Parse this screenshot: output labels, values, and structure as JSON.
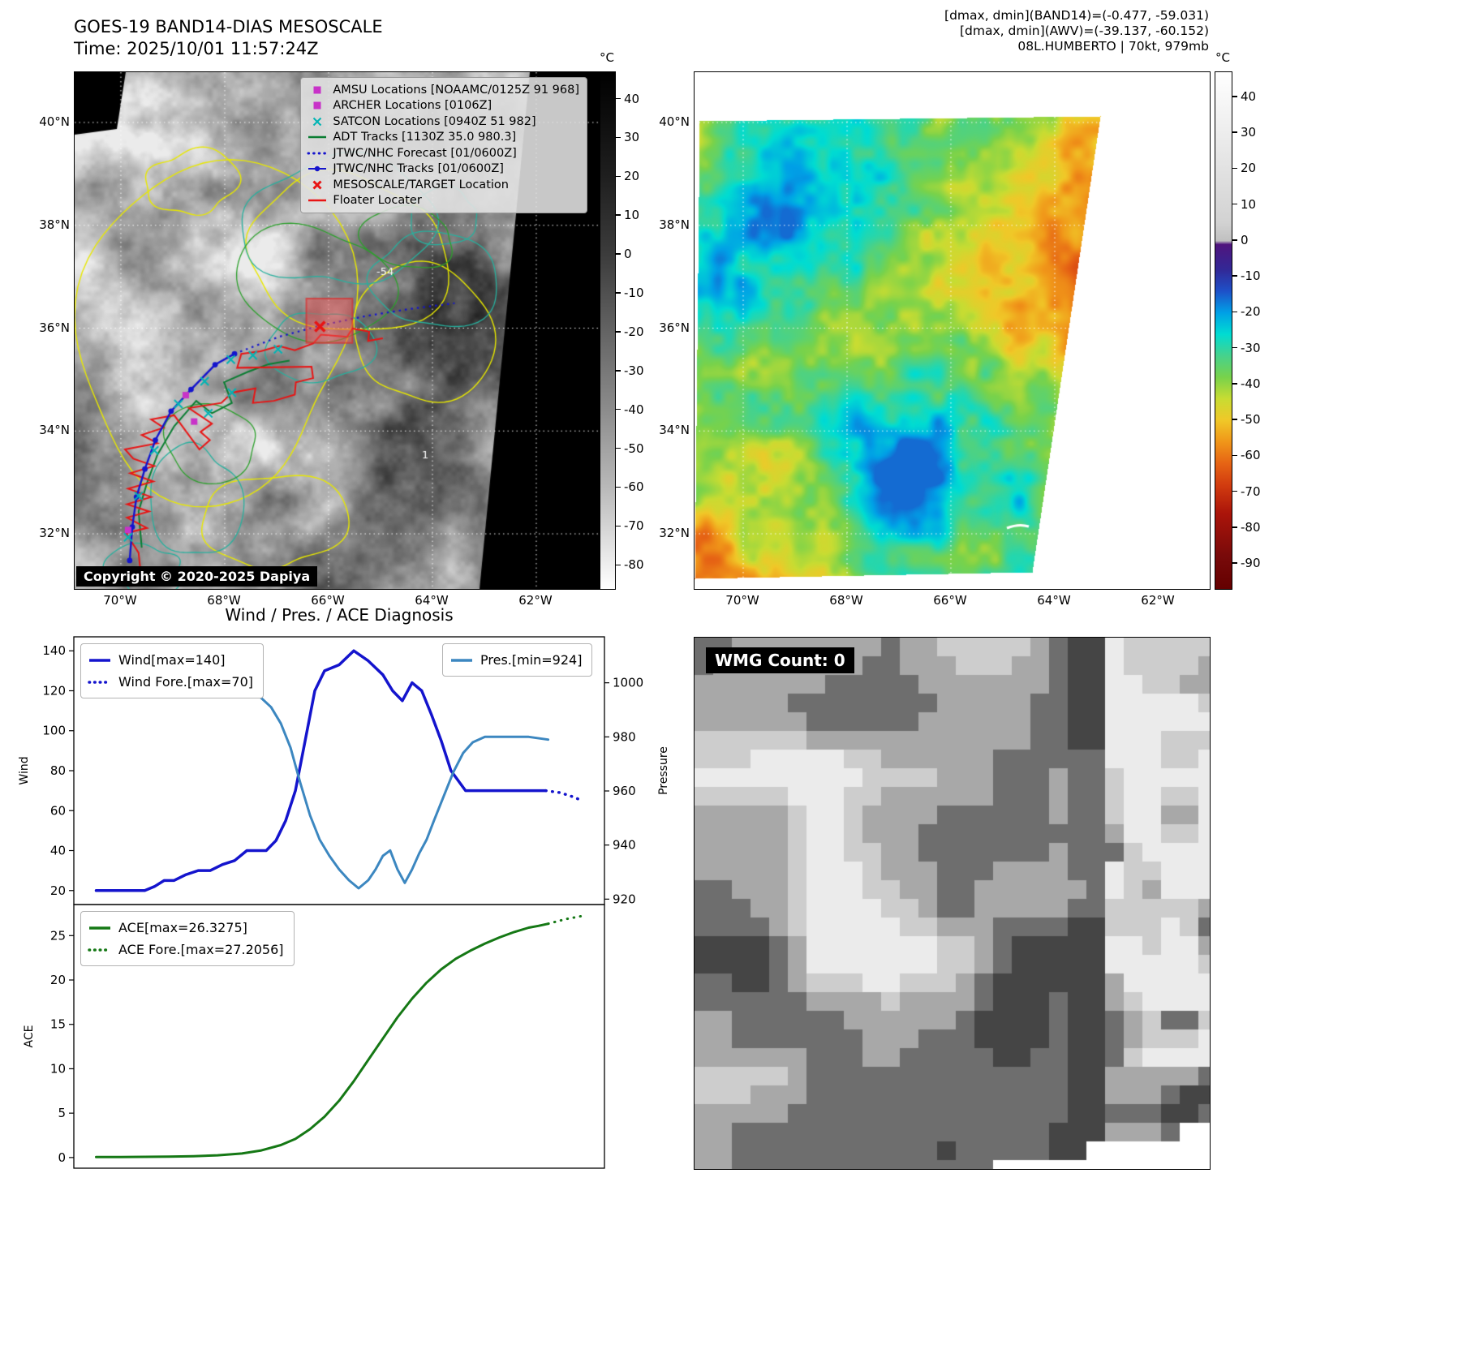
{
  "panel1": {
    "title": "GOES-19 BAND14-DIAS MESOSCALE",
    "time": "Time: 2025/10/01 11:57:24Z",
    "copyright": "Copyright © 2020-2025 Dapiya",
    "contour_labels": [
      "-54",
      "1"
    ],
    "lat_labels": [
      "40°N",
      "38°N",
      "36°N",
      "34°N",
      "32°N"
    ],
    "lon_labels": [
      "70°W",
      "68°W",
      "66°W",
      "64°W",
      "62°W"
    ],
    "colorbar": {
      "unit": "°C",
      "ticks": [
        40,
        30,
        20,
        10,
        0,
        -10,
        -20,
        -30,
        -40,
        -50,
        -60,
        -70,
        -80
      ],
      "vmax": 47,
      "vmin": -86,
      "stops": [
        [
          47,
          "#000000"
        ],
        [
          20,
          "#1f1f1f"
        ],
        [
          0,
          "#3c3c3c"
        ],
        [
          -20,
          "#646464"
        ],
        [
          -40,
          "#8c8c8c"
        ],
        [
          -60,
          "#b9b9b9"
        ],
        [
          -86,
          "#ffffff"
        ]
      ]
    },
    "legend": [
      {
        "label": "AMSU Locations [NOAAMC/0125Z 91 968]",
        "marker": "square",
        "color": "#c832c8"
      },
      {
        "label": "ARCHER Locations [0106Z]",
        "marker": "square",
        "color": "#c832c8"
      },
      {
        "label": "SATCON Locations [0940Z 51 982]",
        "marker": "x",
        "color": "#00b4b4"
      },
      {
        "label": "ADT Tracks [1130Z 35.0 980.3]",
        "marker": "line",
        "color": "#0a7d32"
      },
      {
        "label": "JTWC/NHC Forecast [01/0600Z]",
        "marker": "dotted",
        "color": "#1414cd"
      },
      {
        "label": "JTWC/NHC Tracks [01/0600Z]",
        "marker": "linedot",
        "color": "#1414cd"
      },
      {
        "label": "MESOSCALE/TARGET Location",
        "marker": "boldx",
        "color": "#e81414"
      },
      {
        "label": "Floater Locater",
        "marker": "line",
        "color": "#e81414"
      }
    ],
    "overlays": {
      "blue_track": [
        [
          0.105,
          0.945
        ],
        [
          0.11,
          0.88
        ],
        [
          0.118,
          0.822
        ],
        [
          0.134,
          0.768
        ],
        [
          0.154,
          0.712
        ],
        [
          0.184,
          0.656
        ],
        [
          0.222,
          0.614
        ],
        [
          0.268,
          0.566
        ],
        [
          0.305,
          0.545
        ]
      ],
      "blue_forecast": [
        [
          0.305,
          0.545
        ],
        [
          0.39,
          0.512
        ],
        [
          0.47,
          0.49
        ],
        [
          0.555,
          0.472
        ],
        [
          0.64,
          0.458
        ],
        [
          0.725,
          0.447
        ]
      ],
      "green_track": [
        [
          0.128,
          0.92
        ],
        [
          0.122,
          0.85
        ],
        [
          0.138,
          0.795
        ],
        [
          0.158,
          0.74
        ],
        [
          0.19,
          0.685
        ],
        [
          0.232,
          0.636
        ],
        [
          0.262,
          0.66
        ],
        [
          0.3,
          0.64
        ],
        [
          0.285,
          0.6
        ],
        [
          0.33,
          0.58
        ],
        [
          0.37,
          0.565
        ],
        [
          0.41,
          0.558
        ]
      ],
      "red_track": [
        [
          0.128,
          0.99
        ],
        [
          0.122,
          0.93
        ],
        [
          0.098,
          0.892
        ],
        [
          0.138,
          0.882
        ],
        [
          0.1,
          0.862
        ],
        [
          0.142,
          0.85
        ],
        [
          0.1,
          0.836
        ],
        [
          0.146,
          0.822
        ],
        [
          0.102,
          0.806
        ],
        [
          0.15,
          0.792
        ],
        [
          0.106,
          0.776
        ],
        [
          0.152,
          0.762
        ],
        [
          0.112,
          0.748
        ],
        [
          0.096,
          0.73
        ],
        [
          0.158,
          0.718
        ],
        [
          0.128,
          0.702
        ],
        [
          0.17,
          0.688
        ],
        [
          0.146,
          0.672
        ],
        [
          0.19,
          0.664
        ],
        [
          0.238,
          0.73
        ],
        [
          0.258,
          0.712
        ],
        [
          0.24,
          0.696
        ],
        [
          0.262,
          0.68
        ],
        [
          0.218,
          0.65
        ],
        [
          0.28,
          0.64
        ],
        [
          0.3,
          0.62
        ],
        [
          0.345,
          0.612
        ],
        [
          0.34,
          0.64
        ],
        [
          0.38,
          0.636
        ],
        [
          0.42,
          0.624
        ],
        [
          0.422,
          0.6
        ],
        [
          0.455,
          0.592
        ],
        [
          0.452,
          0.57
        ],
        [
          0.31,
          0.572
        ],
        [
          0.318,
          0.545
        ],
        [
          0.355,
          0.54
        ],
        [
          0.39,
          0.53
        ],
        [
          0.42,
          0.538
        ],
        [
          0.455,
          0.525
        ],
        [
          0.47,
          0.508
        ],
        [
          0.52,
          0.512
        ],
        [
          0.53,
          0.496
        ],
        [
          0.562,
          0.502
        ],
        [
          0.56,
          0.52
        ],
        [
          0.588,
          0.515
        ]
      ],
      "mesoscale_rect": [
        0.442,
        0.438,
        0.088,
        0.086
      ],
      "target_x": [
        0.468,
        0.492
      ],
      "magenta_squares": [
        [
          0.212,
          0.625
        ],
        [
          0.228,
          0.676
        ],
        [
          0.102,
          0.886
        ]
      ],
      "satcon_x": [
        [
          0.102,
          0.9
        ],
        [
          0.122,
          0.82
        ],
        [
          0.152,
          0.732
        ],
        [
          0.198,
          0.642
        ],
        [
          0.248,
          0.598
        ],
        [
          0.298,
          0.556
        ],
        [
          0.34,
          0.548
        ],
        [
          0.388,
          0.536
        ],
        [
          0.3,
          0.62
        ],
        [
          0.255,
          0.66
        ]
      ]
    }
  },
  "panel2": {
    "header_lines": [
      "[dmax, dmin](BAND14)=(-0.477, -59.031)",
      "[dmax, dmin](AWV)=(-39.137, -60.152)",
      "08L.HUMBERTO | 70kt, 979mb"
    ],
    "lat_labels": [
      "40°N",
      "38°N",
      "36°N",
      "34°N",
      "32°N"
    ],
    "lon_labels": [
      "70°W",
      "68°W",
      "66°W",
      "64°W",
      "62°W"
    ],
    "colorbar": {
      "unit": "°C",
      "ticks": [
        40,
        30,
        20,
        10,
        0,
        -10,
        -20,
        -30,
        -40,
        -50,
        -60,
        -70,
        -80,
        -90
      ],
      "vmax": 47,
      "vmin": -97,
      "stops": [
        [
          47,
          "#ffffff"
        ],
        [
          5,
          "#d2d2d2"
        ],
        [
          0,
          "#c0c0c0"
        ],
        [
          -1,
          "#50147d"
        ],
        [
          -8,
          "#322896"
        ],
        [
          -14,
          "#1e50c8"
        ],
        [
          -20,
          "#00a0e6"
        ],
        [
          -26,
          "#00dcd2"
        ],
        [
          -32,
          "#46d28c"
        ],
        [
          -38,
          "#78d24b"
        ],
        [
          -44,
          "#c8dc32"
        ],
        [
          -50,
          "#f0c828"
        ],
        [
          -56,
          "#f09619"
        ],
        [
          -62,
          "#e66414"
        ],
        [
          -68,
          "#d23c0f"
        ],
        [
          -76,
          "#aa140a"
        ],
        [
          -88,
          "#780a0a"
        ],
        [
          -97,
          "#640000"
        ]
      ]
    }
  },
  "panel3": {
    "title": "Wind / Pres. / ACE Diagnosis",
    "wind_label": "Wind",
    "pressure_label": "Pressure",
    "ace_label": "ACE",
    "legends": {
      "wind": [
        {
          "label": "Wind[max=140]",
          "style": "solid",
          "color": "#1414cd"
        },
        {
          "label": "Wind Fore.[max=70]",
          "style": "dotted",
          "color": "#1414cd"
        }
      ],
      "pres": [
        {
          "label": "Pres.[min=924]",
          "style": "solid",
          "color": "#3c87c0"
        }
      ],
      "ace": [
        {
          "label": "ACE[max=26.3275]",
          "style": "solid",
          "color": "#157815"
        },
        {
          "label": "ACE Fore.[max=27.2056]",
          "style": "dotted",
          "color": "#157815"
        }
      ]
    }
  },
  "panel4": {
    "wmg_label": "WMG Count: 0"
  },
  "chart_data": [
    {
      "type": "line",
      "title": "Wind / Pres. / ACE Diagnosis",
      "ylabel_left": "Wind",
      "ylabel_right": "Pressure",
      "y_ticks_left": [
        20,
        40,
        60,
        80,
        100,
        120,
        140
      ],
      "y_ticks_right": [
        920,
        940,
        960,
        980,
        1000
      ],
      "ylim_left": [
        13,
        147
      ],
      "ylim_right": [
        918,
        1017
      ],
      "legend_position": "upper left / upper right",
      "grid": false,
      "series": [
        {
          "name": "Wind[max=140]",
          "axis": "left",
          "style": "solid",
          "color": "#1414cd",
          "width": 3.5,
          "x": [
            0.0,
            0.035,
            0.07,
            0.1,
            0.12,
            0.14,
            0.16,
            0.185,
            0.21,
            0.235,
            0.26,
            0.285,
            0.31,
            0.33,
            0.35,
            0.37,
            0.39,
            0.41,
            0.43,
            0.45,
            0.47,
            0.5,
            0.53,
            0.56,
            0.59,
            0.61,
            0.63,
            0.65,
            0.67,
            0.69,
            0.71,
            0.73,
            0.76,
            0.8,
            0.85,
            0.9,
            0.925
          ],
          "y": [
            20,
            20,
            20,
            20,
            22,
            25,
            25,
            28,
            30,
            30,
            33,
            35,
            40,
            40,
            40,
            45,
            55,
            70,
            95,
            120,
            130,
            133,
            140,
            135,
            128,
            120,
            115,
            124,
            120,
            108,
            95,
            80,
            70,
            70,
            70,
            70,
            70
          ]
        },
        {
          "name": "Wind Fore.[max=70]",
          "axis": "left",
          "style": "dotted",
          "color": "#1414cd",
          "width": 3.5,
          "x": [
            0.925,
            0.955,
            0.98,
            1.0
          ],
          "y": [
            70,
            69,
            67,
            65
          ]
        },
        {
          "name": "Pres.[min=924]",
          "axis": "right",
          "style": "solid",
          "color": "#3c87c0",
          "width": 3,
          "x": [
            0.02,
            0.06,
            0.1,
            0.14,
            0.18,
            0.22,
            0.26,
            0.3,
            0.33,
            0.36,
            0.38,
            0.4,
            0.42,
            0.44,
            0.46,
            0.48,
            0.5,
            0.52,
            0.54,
            0.56,
            0.575,
            0.59,
            0.605,
            0.62,
            0.635,
            0.65,
            0.665,
            0.68,
            0.695,
            0.715,
            0.735,
            0.755,
            0.775,
            0.8,
            0.84,
            0.89,
            0.93
          ],
          "y": [
            1008,
            1007,
            1006,
            1005,
            1004,
            1002,
            1001,
            999,
            996,
            991,
            985,
            976,
            963,
            951,
            942,
            936,
            931,
            927,
            924,
            927,
            931,
            936,
            938,
            931,
            926,
            931,
            937,
            942,
            949,
            958,
            967,
            974,
            978,
            980,
            980,
            980,
            979
          ]
        }
      ]
    },
    {
      "type": "line",
      "ylabel_left": "ACE",
      "y_ticks_left": [
        0,
        5,
        10,
        15,
        20,
        25
      ],
      "ylim_left": [
        -1.2,
        28.5
      ],
      "grid": false,
      "series": [
        {
          "name": "ACE[max=26.3275]",
          "axis": "left",
          "style": "solid",
          "color": "#157815",
          "width": 3,
          "x": [
            0.0,
            0.05,
            0.1,
            0.15,
            0.2,
            0.25,
            0.3,
            0.34,
            0.38,
            0.41,
            0.44,
            0.47,
            0.5,
            0.53,
            0.56,
            0.59,
            0.62,
            0.65,
            0.68,
            0.71,
            0.74,
            0.77,
            0.8,
            0.83,
            0.86,
            0.89,
            0.91,
            0.93
          ],
          "y": [
            0.05,
            0.06,
            0.08,
            0.1,
            0.15,
            0.25,
            0.45,
            0.8,
            1.4,
            2.1,
            3.2,
            4.6,
            6.4,
            8.6,
            11.0,
            13.4,
            15.8,
            17.9,
            19.7,
            21.2,
            22.4,
            23.3,
            24.1,
            24.8,
            25.4,
            25.9,
            26.1,
            26.33
          ]
        },
        {
          "name": "ACE Fore.[max=27.2056]",
          "axis": "left",
          "style": "dotted",
          "color": "#157815",
          "width": 3,
          "x": [
            0.93,
            0.965,
            1.0
          ],
          "y": [
            26.33,
            26.85,
            27.21
          ]
        }
      ]
    }
  ]
}
